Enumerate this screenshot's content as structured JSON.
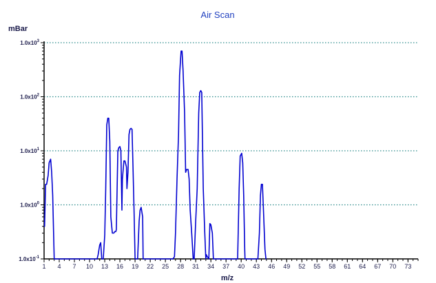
{
  "chart_data": {
    "type": "line",
    "title": "Air Scan",
    "xlabel": "m/z",
    "ylabel": "mBar",
    "xlim": [
      1,
      75
    ],
    "ylim": [
      0.1,
      1000
    ],
    "yscale": "log",
    "grid": "horizontal dotted",
    "colors": {
      "line": "#0000d0",
      "grid": "#2a8a8a",
      "axis": "#000000",
      "text": "#1a1a4a",
      "title": "#1f3fbf"
    },
    "xticks": [
      "1",
      "4",
      "7",
      "10",
      "13",
      "16",
      "19",
      "22",
      "25",
      "28",
      "31",
      "34",
      "37",
      "40",
      "43",
      "46",
      "49",
      "52",
      "55",
      "58",
      "61",
      "64",
      "67",
      "70",
      "73"
    ],
    "yticks": [
      {
        "value": 0.1,
        "mant": "1.0x10",
        "exp": "-1"
      },
      {
        "value": 1,
        "mant": "1.0x10",
        "exp": "0"
      },
      {
        "value": 10,
        "mant": "1.0x10",
        "exp": "1"
      },
      {
        "value": 100,
        "mant": "1.0x10",
        "exp": "2"
      },
      {
        "value": 1000,
        "mant": "1.0x10",
        "exp": "3"
      }
    ],
    "series": [
      {
        "x": [
          1,
          1.1,
          1.3,
          1.5,
          1.8,
          2.0,
          2.3,
          2.5,
          2.7,
          3.0,
          3.05,
          11.5,
          11.7,
          12.0,
          12.2,
          12.4,
          12.5,
          12.7,
          13.0,
          13.2,
          13.4,
          13.6,
          13.8,
          14.0,
          14.2,
          14.5,
          14.8,
          15.0,
          15.2,
          15.3,
          15.6,
          15.8,
          16.0,
          16.2,
          16.4,
          16.5,
          16.8,
          17.0,
          17.3,
          17.4,
          17.6,
          17.8,
          18.0,
          18.2,
          18.4,
          18.6,
          18.8,
          19.0,
          19.05,
          19.5,
          19.8,
          20.0,
          20.2,
          20.5,
          20.6,
          26.2,
          26.5,
          26.8,
          27.0,
          27.3,
          27.6,
          27.8,
          28.1,
          28.3,
          28.5,
          28.8,
          29.0,
          29.2,
          29.5,
          29.7,
          29.9,
          30.2,
          30.5,
          30.7,
          31.0,
          31.3,
          31.6,
          31.8,
          32.0,
          32.2,
          32.5,
          32.8,
          33.0,
          33.1,
          33.3,
          33.6,
          33.8,
          34.0,
          34.3,
          34.5,
          34.7,
          34.75,
          39.3,
          39.6,
          39.8,
          40.1,
          40.3,
          40.5,
          40.7,
          40.75,
          43.3,
          43.6,
          43.8,
          44.0,
          44.2,
          44.4,
          44.7,
          44.9,
          45.0
        ],
        "y": [
          0.4,
          0.4,
          2.4,
          2.4,
          3.5,
          6.0,
          7.0,
          4.0,
          1.5,
          0.1,
          0.1,
          0.1,
          0.12,
          0.18,
          0.2,
          0.1,
          0.1,
          0.1,
          0.28,
          2.0,
          30.0,
          40.0,
          40.0,
          15.0,
          0.6,
          0.3,
          0.3,
          0.32,
          0.32,
          0.35,
          10.0,
          11.5,
          12.0,
          10.0,
          0.8,
          3.0,
          6.5,
          6.5,
          5.0,
          2.0,
          4.0,
          20.0,
          25.0,
          26.0,
          25.0,
          5.0,
          0.8,
          0.1,
          0.1,
          0.1,
          0.5,
          0.8,
          0.9,
          0.6,
          0.1,
          0.1,
          0.1,
          0.11,
          0.3,
          3.0,
          20.0,
          250.0,
          700.0,
          700.0,
          300.0,
          50.0,
          4.0,
          4.5,
          4.5,
          3.0,
          0.8,
          0.3,
          0.1,
          0.1,
          0.5,
          2.0,
          50.0,
          120.0,
          130.0,
          120.0,
          2.0,
          0.3,
          0.1,
          0.12,
          0.11,
          0.1,
          0.45,
          0.43,
          0.3,
          0.1,
          0.1,
          0.1,
          0.1,
          2.0,
          8.0,
          9.0,
          6.0,
          1.5,
          0.15,
          0.1,
          0.1,
          0.3,
          1.5,
          2.4,
          2.4,
          0.8,
          0.15,
          0.1,
          0.1
        ]
      }
    ]
  }
}
